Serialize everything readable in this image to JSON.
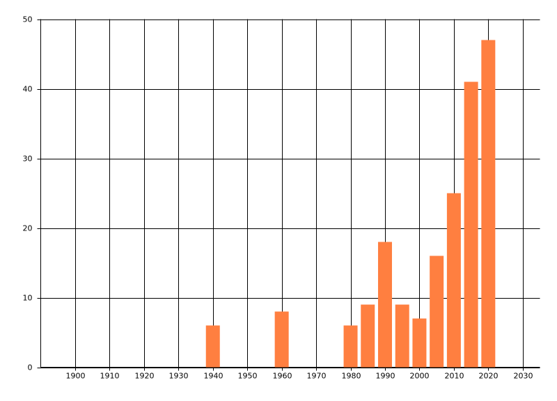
{
  "chart_data": {
    "type": "bar",
    "x": [
      1940,
      1960,
      1980,
      1985,
      1990,
      1995,
      2000,
      2005,
      2010,
      2015,
      2020
    ],
    "values": [
      6,
      8,
      6,
      9,
      18,
      9,
      7,
      16,
      25,
      41,
      47
    ],
    "color": "#ff7f40",
    "xlim": [
      1890,
      2035
    ],
    "xticks": [
      1900,
      1910,
      1920,
      1930,
      1940,
      1950,
      1960,
      1970,
      1980,
      1990,
      2000,
      2010,
      2020,
      2030
    ],
    "ylim": [
      0,
      50
    ],
    "yticks": [
      0,
      10,
      20,
      30,
      40,
      50
    ],
    "grid": true
  }
}
